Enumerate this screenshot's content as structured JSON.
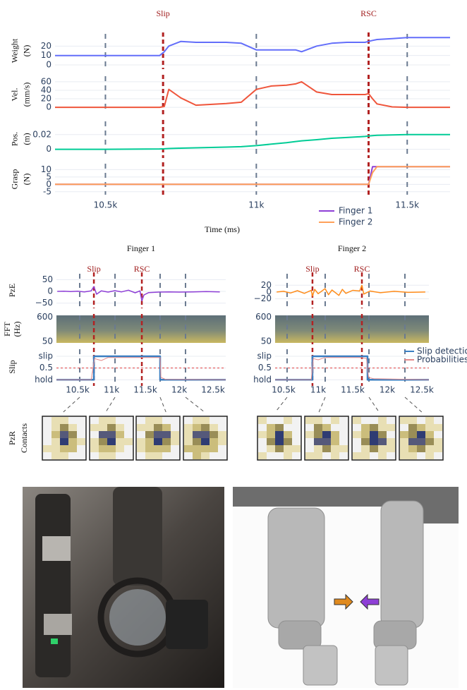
{
  "chart_data": [
    {
      "type": "line",
      "ylabel": [
        "Weight",
        "(N)"
      ],
      "annotations": [
        {
          "text": "Slip",
          "x": 10691
        },
        {
          "text": "RSC",
          "x": 11372
        }
      ],
      "x": [
        10333,
        10500,
        10680,
        10695,
        10710,
        10750,
        10800,
        10900,
        10950,
        11000,
        11050,
        11100,
        11130,
        11150,
        11200,
        11250,
        11300,
        11360,
        11372,
        11385,
        11400,
        11450,
        11500,
        11600,
        11642
      ],
      "values": [
        10,
        10,
        10,
        14,
        20,
        25,
        24,
        24,
        23,
        16,
        16,
        16,
        16,
        14,
        20,
        23,
        24,
        24,
        25,
        26,
        27,
        28,
        29,
        29,
        29
      ],
      "color": "#636efa",
      "ylim": [
        -3,
        33
      ],
      "yticks": [
        0,
        10,
        20
      ]
    },
    {
      "type": "line",
      "ylabel": [
        "Vel.",
        "(mm/s)"
      ],
      "x": [
        10333,
        10500,
        10680,
        10695,
        10710,
        10750,
        10800,
        10900,
        10950,
        11000,
        11050,
        11100,
        11130,
        11150,
        11200,
        11250,
        11300,
        11360,
        11372,
        11385,
        11400,
        11450,
        11500,
        11600,
        11642
      ],
      "values": [
        0,
        0,
        0,
        2,
        42,
        22,
        5,
        9,
        12,
        42,
        50,
        52,
        55,
        60,
        36,
        30,
        30,
        30,
        32,
        20,
        8,
        1,
        0,
        0,
        0
      ],
      "color": "#ef553b",
      "ylim": [
        -13,
        73
      ],
      "yticks": [
        0,
        20,
        40,
        60
      ]
    },
    {
      "type": "line",
      "ylabel": [
        "Pos.",
        "(m)"
      ],
      "x": [
        10333,
        10500,
        10680,
        10695,
        10710,
        10750,
        10800,
        10900,
        10950,
        11000,
        11050,
        11100,
        11130,
        11150,
        11200,
        11250,
        11300,
        11360,
        11372,
        11385,
        11400,
        11450,
        11500,
        11600,
        11642
      ],
      "values": [
        0,
        0,
        0.0005,
        0.0007,
        0.001,
        0.0015,
        0.002,
        0.003,
        0.0035,
        0.005,
        0.007,
        0.009,
        0.0105,
        0.0115,
        0.013,
        0.015,
        0.016,
        0.0175,
        0.018,
        0.0185,
        0.019,
        0.0195,
        0.02,
        0.02,
        0.02
      ],
      "color": "#00cc96",
      "ylim": [
        -0.01,
        0.038
      ],
      "yticks": [
        0,
        0.02
      ]
    },
    {
      "type": "line",
      "ylabel": [
        "Grasp",
        "(N)"
      ],
      "xlabel": "Time (ms)",
      "x": [
        10333,
        10500,
        10680,
        10695,
        10710,
        10750,
        10800,
        10900,
        10950,
        11000,
        11050,
        11100,
        11130,
        11150,
        11200,
        11250,
        11300,
        11360,
        11372,
        11385,
        11400,
        11450,
        11500,
        11600,
        11642
      ],
      "series": [
        {
          "name": "Finger 1",
          "color": "#8e3fd6",
          "values": [
            0,
            0,
            0,
            0,
            0,
            0,
            0,
            0,
            0,
            0,
            0,
            0,
            0,
            0,
            0,
            0,
            0,
            0,
            0,
            12,
            12,
            12,
            12,
            12,
            12
          ]
        },
        {
          "name": "Finger 2",
          "color": "#ffa15a",
          "values": [
            0,
            0,
            0,
            0,
            0,
            0,
            0,
            0,
            0,
            0,
            0,
            0,
            0,
            0,
            0,
            0,
            0,
            0,
            0,
            8,
            12,
            12,
            12,
            12,
            12
          ]
        }
      ],
      "xlim": [
        10333,
        11642
      ],
      "xticks": [
        {
          "value": 10500,
          "label": "10.5k"
        },
        {
          "value": 11000,
          "label": "11k"
        },
        {
          "value": 11500,
          "label": "11.5k"
        }
      ],
      "ylim": [
        -7,
        14
      ],
      "yticks": [
        -5,
        0,
        5,
        10
      ],
      "legend": "bottom right"
    },
    {
      "type": "line",
      "title": "Finger 1",
      "ylabel": [
        "PzE"
      ],
      "annotations": [
        {
          "text": "Slip",
          "x": 10740
        },
        {
          "text": "RSC",
          "x": 11448
        }
      ],
      "x": [
        10200,
        10300,
        10400,
        10500,
        10600,
        10700,
        10740,
        10780,
        10850,
        10950,
        11050,
        11150,
        11250,
        11350,
        11420,
        11448,
        11480,
        11550,
        11700,
        11850,
        12000,
        12200,
        12400,
        12600
      ],
      "values": [
        0,
        1,
        -1,
        1,
        -2,
        2,
        20,
        -12,
        2,
        -3,
        3,
        -2,
        5,
        -6,
        2,
        -40,
        -15,
        -5,
        -3,
        -2,
        -3,
        -2,
        -1,
        -2
      ],
      "color": "#8e3fd6",
      "xlim": [
        10187,
        12687
      ],
      "ylim": [
        -66,
        75
      ],
      "yticks": [
        50,
        0,
        {
          "value": -50,
          "label": "−50"
        }
      ]
    },
    {
      "type": "spectrogram",
      "ylabel": [
        "FFT",
        "(Hz)"
      ],
      "ylim": [
        20,
        640
      ],
      "yticks": [
        50,
        600
      ]
    },
    {
      "type": "step",
      "ylabel": [
        "Slip"
      ],
      "xlim": [
        10187,
        12687
      ],
      "xticks": [
        {
          "value": 10500,
          "label": "10.5k"
        },
        {
          "value": 11000,
          "label": "11k"
        },
        {
          "value": 11500,
          "label": "11.5k"
        },
        {
          "value": 12000,
          "label": "12k"
        },
        {
          "value": 12500,
          "label": "12.5k"
        }
      ],
      "ylim": [
        -0.2,
        1.3
      ],
      "yticks": [
        {
          "value": 1,
          "label": "slip"
        },
        0.5,
        {
          "value": 0,
          "label": "hold"
        }
      ],
      "threshold": 0.5,
      "snapshots": [
        10531,
        11052,
        11718,
        12093
      ],
      "series": [
        {
          "color": "#3a7fc2",
          "x": [
            10187,
            10740,
            10740,
            11718,
            11718,
            12687
          ],
          "values": [
            0,
            0,
            1,
            1,
            0,
            0
          ]
        },
        {
          "color": "#e58a8a",
          "x": [
            10187,
            10700,
            10750,
            10850,
            10950,
            11500,
            11600,
            11718,
            11730,
            11800,
            12687
          ],
          "values": [
            0,
            0,
            0.9,
            0.82,
            0.95,
            0.95,
            0.95,
            0.95,
            0.1,
            0.02,
            0
          ]
        }
      ]
    },
    {
      "type": "line",
      "title": "Finger 2",
      "ylabel": [],
      "annotations": [
        {
          "text": "Slip",
          "x": 10918
        },
        {
          "text": "RSC",
          "x": 11633
        }
      ],
      "x": [
        10400,
        10500,
        10600,
        10700,
        10800,
        10900,
        10918,
        10950,
        11000,
        11100,
        11150,
        11200,
        11300,
        11350,
        11400,
        11500,
        11600,
        11633,
        11660,
        11750,
        11900,
        12100,
        12300,
        12550
      ],
      "values": [
        0,
        2,
        -3,
        4,
        -4,
        5,
        -12,
        8,
        -5,
        10,
        -8,
        6,
        -10,
        8,
        -4,
        5,
        3,
        20,
        -6,
        3,
        -2,
        2,
        -1,
        0
      ],
      "color": "#ff8c1a",
      "xlim": [
        10378,
        12602
      ],
      "ylim": [
        -44,
        54
      ],
      "yticks": [
        20,
        0,
        {
          "value": -20,
          "label": "−20"
        }
      ]
    },
    {
      "type": "spectrogram",
      "ylabel": [],
      "ylim": [
        20,
        640
      ],
      "yticks": [
        50,
        600
      ]
    },
    {
      "type": "step",
      "ylabel": [],
      "xlim": [
        10378,
        12602
      ],
      "xticks": [
        {
          "value": 10500,
          "label": "10.5k"
        },
        {
          "value": 11000,
          "label": "11k"
        },
        {
          "value": 11500,
          "label": "11.5k"
        },
        {
          "value": 12000,
          "label": "12k"
        },
        {
          "value": 12500,
          "label": "12.5k"
        }
      ],
      "ylim": [
        -0.2,
        1.3
      ],
      "yticks": [
        {
          "value": 1,
          "label": "slip"
        },
        0.5,
        {
          "value": 0,
          "label": "hold"
        }
      ],
      "threshold": 0.5,
      "snapshots": [
        10551,
        11102,
        11735,
        12255
      ],
      "legend": "top right",
      "series": [
        {
          "name": "Slip detection",
          "color": "#3a7fc2",
          "x": [
            10378,
            10918,
            10918,
            11714,
            11714,
            12602
          ],
          "values": [
            0,
            0,
            1,
            1,
            0,
            0
          ]
        },
        {
          "name": "Probabilities",
          "color": "#e58a8a",
          "x": [
            10378,
            10900,
            10930,
            11000,
            11100,
            11600,
            11700,
            11714,
            11730,
            11800,
            12602
          ],
          "values": [
            0,
            0,
            0.9,
            0.85,
            0.95,
            0.95,
            0.9,
            0.5,
            0.1,
            0.05,
            0
          ]
        }
      ]
    }
  ],
  "pzr_label": [
    "PzR",
    "Contacts"
  ]
}
